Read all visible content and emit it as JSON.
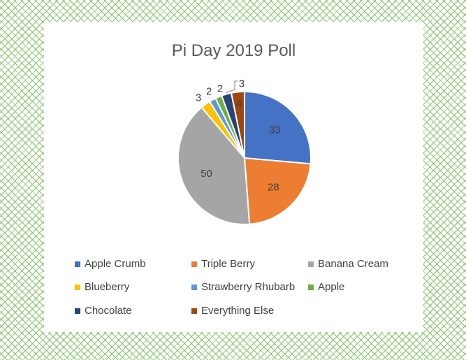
{
  "chart_data": {
    "type": "pie",
    "title": "Pi Day 2019 Poll",
    "legend": "bottom",
    "slices": [
      {
        "label": "Apple Crumb",
        "value": 33,
        "color": "#4472C4"
      },
      {
        "label": "Triple Berry",
        "value": 28,
        "color": "#ED7D31"
      },
      {
        "label": "Banana Cream",
        "value": 50,
        "color": "#A5A5A5"
      },
      {
        "label": "Blueberry",
        "value": 3,
        "color": "#FFC000"
      },
      {
        "label": "Strawberry Rhubarb",
        "value": 2,
        "color": "#5B9BD5"
      },
      {
        "label": "Apple",
        "value": 2,
        "color": "#70AD47"
      },
      {
        "label": "Chocolate",
        "value": 3,
        "color": "#264478"
      },
      {
        "label": "Everything Else",
        "value": 4,
        "color": "#9E480E"
      }
    ]
  }
}
